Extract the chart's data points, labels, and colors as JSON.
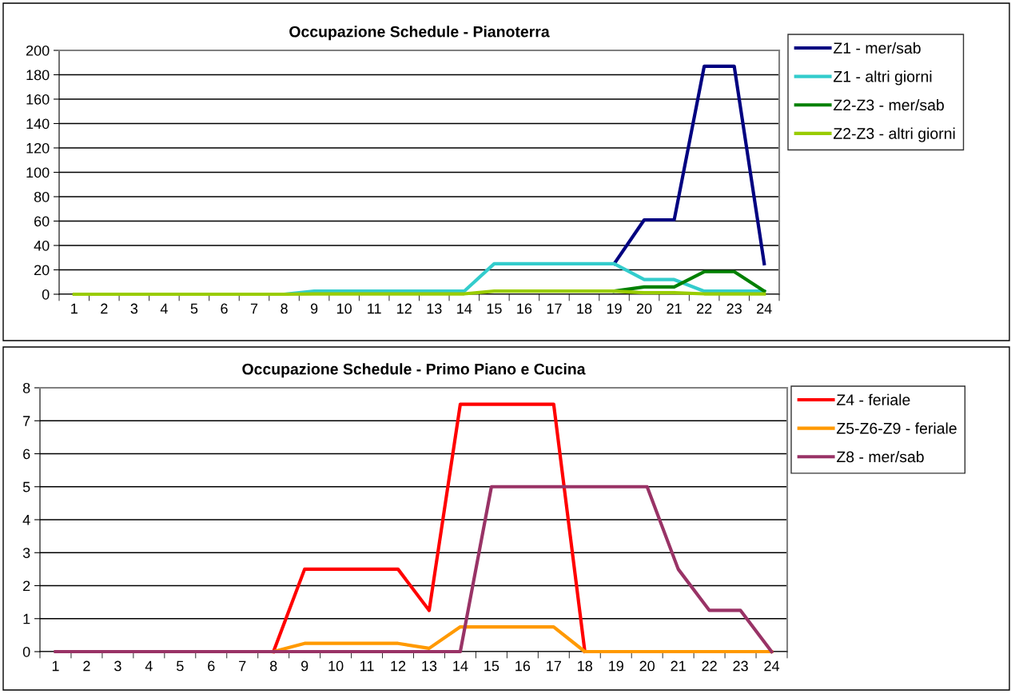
{
  "chart_data": [
    {
      "type": "line",
      "title": "Occupazione Schedule - Pianoterra",
      "categories": [
        "1",
        "2",
        "3",
        "4",
        "5",
        "6",
        "7",
        "8",
        "9",
        "10",
        "11",
        "12",
        "13",
        "14",
        "15",
        "16",
        "17",
        "18",
        "19",
        "20",
        "21",
        "22",
        "23",
        "24"
      ],
      "ylim": [
        0,
        200
      ],
      "yticks": [
        0,
        20,
        40,
        60,
        80,
        100,
        120,
        140,
        160,
        180,
        200
      ],
      "grid": "y",
      "legend": "right",
      "marker": "none",
      "line_style": "solid",
      "series": [
        {
          "name": "Z1 - mer/sab",
          "color": "#000080",
          "values": [
            null,
            null,
            null,
            null,
            null,
            null,
            null,
            null,
            null,
            null,
            null,
            null,
            null,
            null,
            null,
            null,
            null,
            null,
            25,
            61,
            61,
            187,
            187,
            25
          ]
        },
        {
          "name": "Z1 - altri giorni",
          "color": "#33cccc",
          "values": [
            null,
            null,
            null,
            null,
            null,
            null,
            0,
            0,
            2.5,
            2.5,
            2.5,
            2.5,
            2.5,
            2.5,
            25,
            25,
            25,
            25,
            25,
            12,
            12,
            2.5,
            2.5,
            2.5
          ]
        },
        {
          "name": "Z2-Z3 - mer/sab",
          "color": "#008000",
          "values": [
            null,
            null,
            null,
            null,
            null,
            null,
            null,
            null,
            null,
            null,
            null,
            null,
            null,
            null,
            null,
            null,
            null,
            null,
            2.5,
            6,
            6,
            18.5,
            18.5,
            2.5
          ]
        },
        {
          "name": "Z2-Z3 - altri giorni",
          "color": "#99cc00",
          "values": [
            0,
            0,
            0,
            0,
            0,
            0,
            0,
            0,
            0.3,
            0.3,
            0.3,
            0.3,
            0.3,
            0.3,
            2.5,
            2.5,
            2.5,
            2.5,
            2.5,
            1.2,
            1.2,
            0.3,
            0.3,
            0.3
          ]
        }
      ]
    },
    {
      "type": "line",
      "title": "Occupazione Schedule - Primo Piano e Cucina",
      "categories": [
        "1",
        "2",
        "3",
        "4",
        "5",
        "6",
        "7",
        "8",
        "9",
        "10",
        "11",
        "12",
        "13",
        "14",
        "15",
        "16",
        "17",
        "18",
        "19",
        "20",
        "21",
        "22",
        "23",
        "24"
      ],
      "ylim": [
        0,
        8
      ],
      "yticks": [
        0,
        1,
        2,
        3,
        4,
        5,
        6,
        7,
        8
      ],
      "grid": "y",
      "legend": "right",
      "marker": "none",
      "line_style": "solid",
      "series": [
        {
          "name": "Z4 - feriale",
          "color": "#ff0000",
          "values": [
            null,
            null,
            null,
            null,
            null,
            null,
            null,
            0,
            2.5,
            2.5,
            2.5,
            2.5,
            1.25,
            7.5,
            7.5,
            7.5,
            7.5,
            0,
            null,
            null,
            null,
            null,
            null,
            null
          ]
        },
        {
          "name": "Z5-Z6-Z9 - feriale",
          "color": "#ff9900",
          "values": [
            null,
            null,
            null,
            null,
            null,
            null,
            null,
            0,
            0.25,
            0.25,
            0.25,
            0.25,
            0.1,
            0.75,
            0.75,
            0.75,
            0.75,
            0,
            0,
            0,
            0,
            0,
            0,
            0
          ]
        },
        {
          "name": "Z8 - mer/sab",
          "color": "#993366",
          "values": [
            0,
            0,
            0,
            0,
            0,
            0,
            0,
            0,
            0,
            0,
            0,
            0,
            0,
            0,
            5,
            5,
            5,
            5,
            5,
            5,
            2.5,
            1.25,
            1.25,
            0
          ]
        }
      ]
    }
  ]
}
